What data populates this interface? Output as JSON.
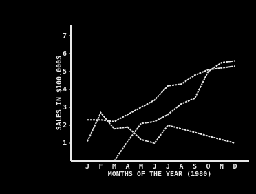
{
  "chart_data": {
    "type": "line",
    "y_label": "SALES IN $100.000S",
    "x_label": "MONTHS OF THE YEAR (1980)",
    "categories": [
      "J",
      "F",
      "M",
      "A",
      "M",
      "J",
      "J",
      "A",
      "S",
      "O",
      "N",
      "D"
    ],
    "series": [
      {
        "color": "#e8e8e8",
        "values": [
          2.3,
          2.3,
          2.2,
          2.6,
          3.0,
          3.4,
          4.2,
          4.3,
          4.8,
          5.1,
          5.2,
          5.3
        ]
      },
      {
        "color": "#e8e8e8",
        "values": [
          1.1,
          2.7,
          1.8,
          1.9,
          1.2,
          1.0,
          2.0,
          1.8,
          1.6,
          1.4,
          1.2,
          1.0
        ]
      },
      {
        "color": "#e8e8e8",
        "values": [
          null,
          null,
          0,
          1.1,
          2.1,
          2.2,
          2.6,
          3.2,
          3.5,
          5.0,
          5.5,
          5.6
        ]
      }
    ],
    "ylim": [
      0,
      7.5
    ],
    "yticks": [
      1,
      2,
      3,
      4,
      5,
      6,
      7
    ],
    "grid": false
  }
}
